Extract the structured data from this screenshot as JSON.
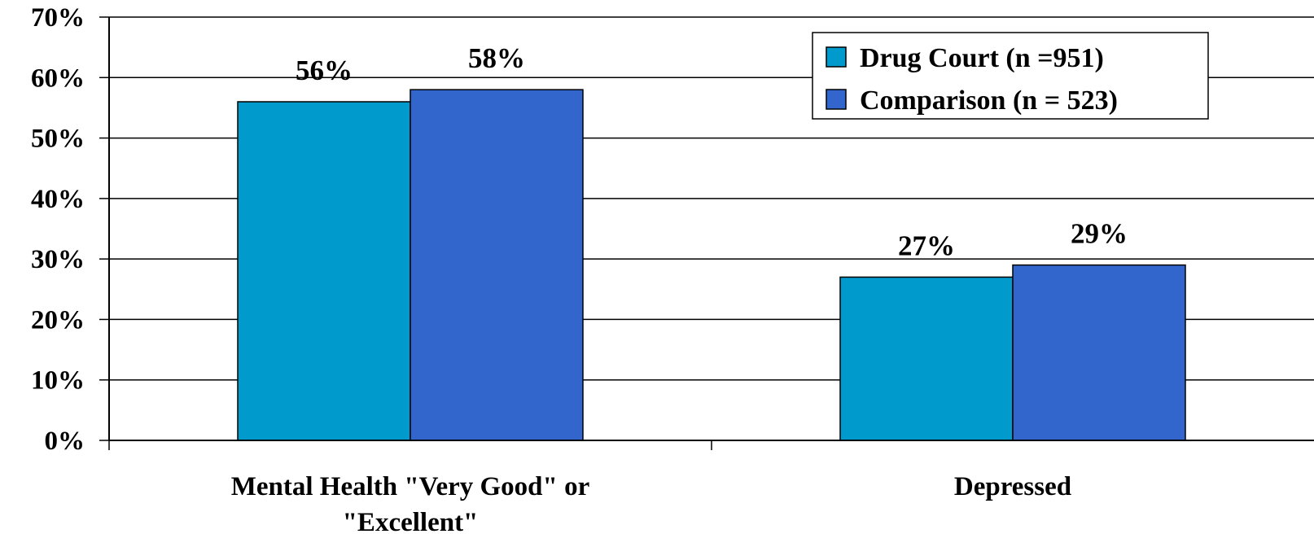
{
  "chart_data": {
    "type": "bar",
    "title": "",
    "xlabel": "",
    "ylabel": "",
    "categories": [
      [
        "Mental Health \"Very Good\" or",
        "\"Excellent\""
      ],
      [
        "Depressed"
      ]
    ],
    "series": [
      {
        "name": "Drug Court (n =951)",
        "color": "#009ACD",
        "values": [
          56,
          27
        ],
        "labels": [
          "56%",
          "27%"
        ]
      },
      {
        "name": "Comparison (n = 523)",
        "color": "#3366CC",
        "values": [
          58,
          29
        ],
        "labels": [
          "58%",
          "29%"
        ]
      }
    ],
    "ylim": [
      0,
      70
    ],
    "yticks": [
      0,
      10,
      20,
      30,
      40,
      50,
      60,
      70
    ],
    "ytick_labels": [
      "0%",
      "10%",
      "20%",
      "30%",
      "40%",
      "50%",
      "60%",
      "70%"
    ],
    "grid": true,
    "legend_position": "top-right"
  }
}
